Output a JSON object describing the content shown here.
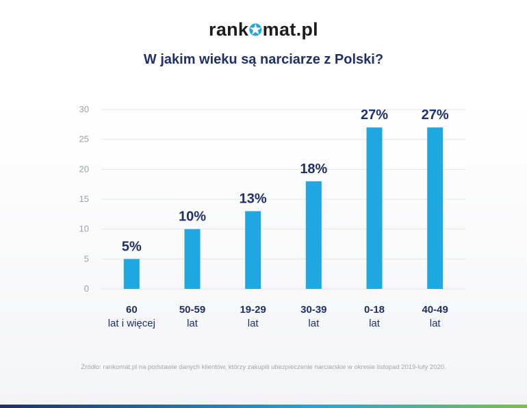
{
  "logo": {
    "left": "rank",
    "right": "mat.pl",
    "icon": "star-o-icon"
  },
  "title": "W jakim wieku są narciarze z Polski?",
  "source": "Źródło: rankomat.pl na podstawie danych klientów, którzy zakupili ubezpieczenie narciarskie w okresie listopad 2019-luty 2020.",
  "colors": {
    "bar": "#1ea7e1",
    "value_label": "#1f2f6b",
    "category_label": "#1f2f6b",
    "axis_tick": "#9aa0a8",
    "grid": "#e2e4e8"
  },
  "chart_data": {
    "type": "bar",
    "categories": [
      [
        "60",
        "lat i więcej"
      ],
      [
        "50-59",
        "lat"
      ],
      [
        "19-29",
        "lat"
      ],
      [
        "30-39",
        "lat"
      ],
      [
        "0-18",
        "lat"
      ],
      [
        "40-49",
        "lat"
      ]
    ],
    "values": [
      5,
      10,
      13,
      18,
      27,
      27
    ],
    "data_labels": [
      "5%",
      "10%",
      "13%",
      "18%",
      "27%",
      "27%"
    ],
    "ylim": [
      0,
      30
    ],
    "yticks": [
      0,
      5,
      10,
      15,
      20,
      25,
      30
    ],
    "grid": true,
    "title": "W jakim wieku są narciarze z Polski?",
    "xlabel": "",
    "ylabel": ""
  }
}
